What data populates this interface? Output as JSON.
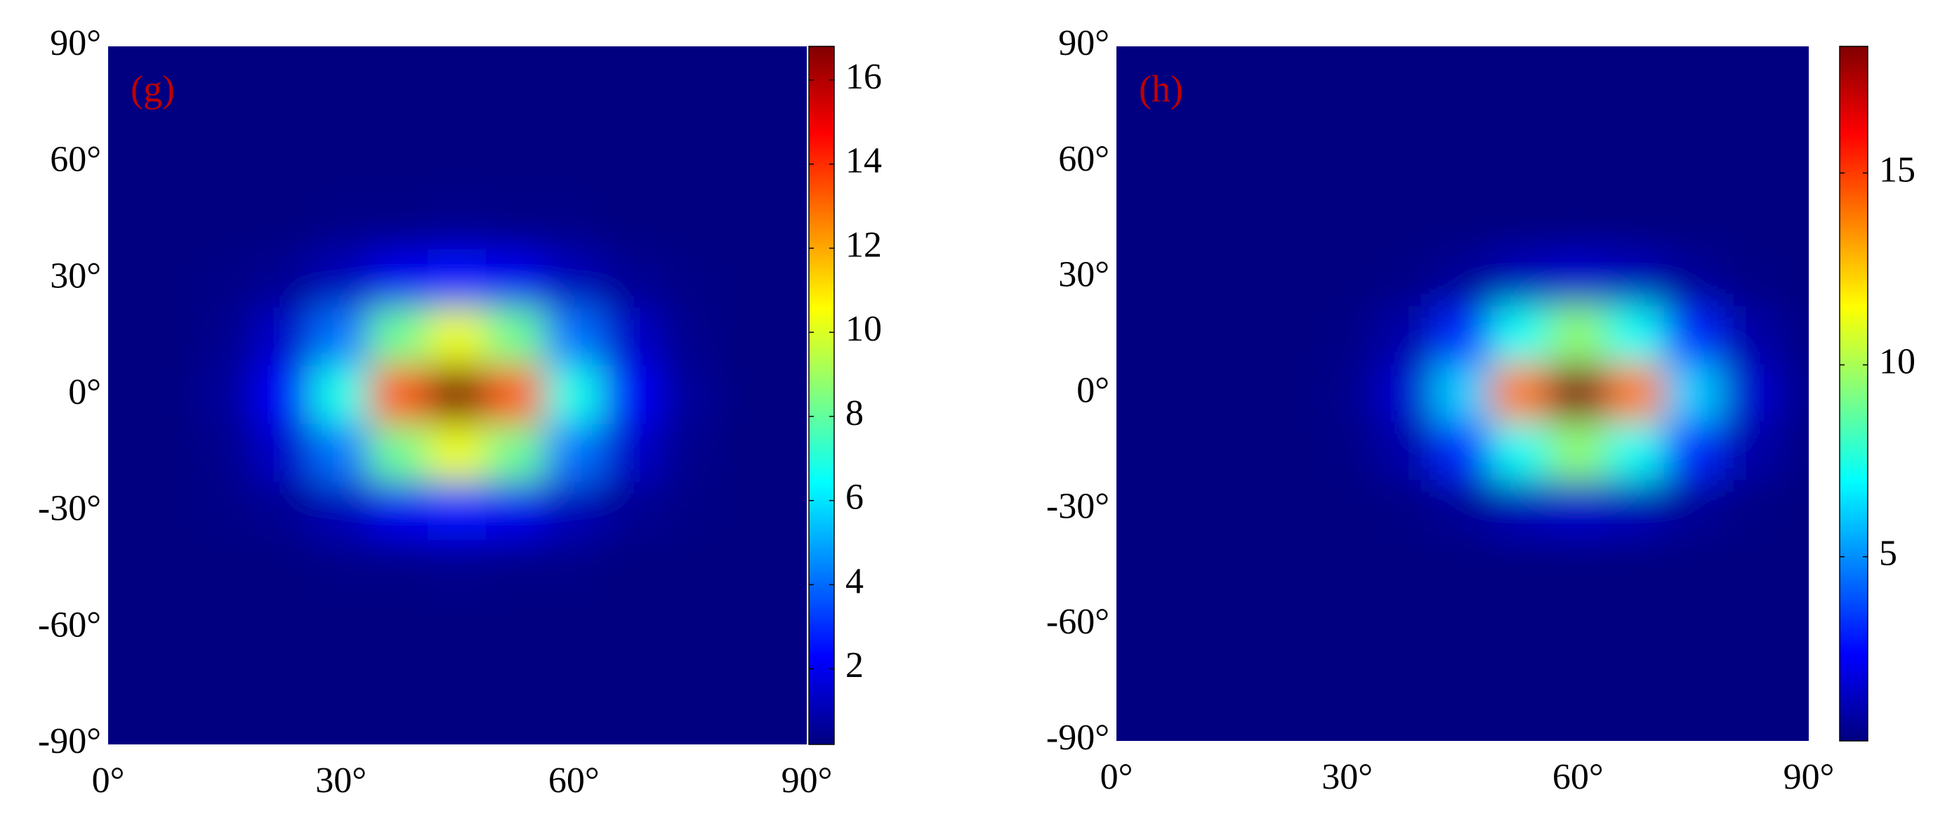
{
  "chart_data": [
    {
      "type": "heatmap",
      "panel_label": "(g)",
      "colormap": "jet",
      "x": [
        0,
        7.5,
        15,
        22.5,
        30,
        37.5,
        45,
        52.5,
        60,
        67.5,
        75,
        82.5,
        90
      ],
      "y": [
        90,
        75,
        60,
        45,
        30,
        15,
        0,
        -15,
        -30,
        -45,
        -60,
        -75,
        -90
      ],
      "z": [
        [
          0.2,
          0.2,
          0.2,
          0.2,
          0.2,
          0.2,
          0.2,
          0.2,
          0.2,
          0.2,
          0.2,
          0.2,
          0.2
        ],
        [
          0.2,
          0.2,
          0.2,
          0.2,
          0.2,
          0.2,
          0.2,
          0.2,
          0.2,
          0.2,
          0.2,
          0.2,
          0.2
        ],
        [
          0.2,
          0.2,
          0.2,
          0.2,
          0.2,
          0.2,
          0.2,
          0.2,
          0.2,
          0.2,
          0.2,
          0.2,
          0.2
        ],
        [
          0.2,
          0.2,
          0.2,
          0.2,
          0.3,
          0.3,
          0.4,
          0.3,
          0.3,
          0.2,
          0.2,
          0.2,
          0.2
        ],
        [
          0.2,
          0.2,
          0.3,
          0.5,
          1.1,
          2.0,
          2.4,
          2.0,
          1.1,
          0.5,
          0.3,
          0.2,
          0.2
        ],
        [
          0.2,
          0.2,
          0.4,
          1.4,
          4.2,
          8.2,
          10.3,
          8.2,
          4.2,
          1.4,
          0.4,
          0.2,
          0.2
        ],
        [
          0.2,
          0.2,
          0.6,
          2.2,
          6.8,
          13.4,
          16.8,
          13.4,
          6.8,
          2.2,
          0.6,
          0.2,
          0.2
        ],
        [
          0.2,
          0.2,
          0.4,
          1.4,
          4.2,
          8.2,
          10.3,
          8.2,
          4.2,
          1.4,
          0.4,
          0.2,
          0.2
        ],
        [
          0.2,
          0.2,
          0.3,
          0.5,
          1.1,
          2.0,
          2.4,
          2.0,
          1.1,
          0.5,
          0.3,
          0.2,
          0.2
        ],
        [
          0.2,
          0.2,
          0.2,
          0.2,
          0.3,
          0.3,
          0.4,
          0.3,
          0.3,
          0.2,
          0.2,
          0.2,
          0.2
        ],
        [
          0.2,
          0.2,
          0.2,
          0.2,
          0.2,
          0.2,
          0.2,
          0.2,
          0.2,
          0.2,
          0.2,
          0.2,
          0.2
        ],
        [
          0.2,
          0.2,
          0.2,
          0.2,
          0.2,
          0.2,
          0.2,
          0.2,
          0.2,
          0.2,
          0.2,
          0.2,
          0.2
        ],
        [
          0.2,
          0.2,
          0.2,
          0.2,
          0.2,
          0.2,
          0.2,
          0.2,
          0.2,
          0.2,
          0.2,
          0.2,
          0.2
        ]
      ],
      "xlim": [
        0,
        90
      ],
      "ylim": [
        -90,
        90
      ],
      "xticks": [
        {
          "value": 0,
          "label": "0°"
        },
        {
          "value": 30,
          "label": "30°"
        },
        {
          "value": 60,
          "label": "60°"
        },
        {
          "value": 90,
          "label": "90°"
        }
      ],
      "yticks": [
        {
          "value": 90,
          "label": "90°"
        },
        {
          "value": 60,
          "label": "60°"
        },
        {
          "value": 30,
          "label": "30°"
        },
        {
          "value": 0,
          "label": "0°"
        },
        {
          "value": -30,
          "label": "-30°"
        },
        {
          "value": -60,
          "label": "-60°"
        },
        {
          "value": -90,
          "label": "-90°"
        }
      ],
      "clim": [
        0.2,
        16.8
      ],
      "cticks": [
        2,
        4,
        6,
        8,
        10,
        12,
        14,
        16
      ]
    },
    {
      "type": "heatmap",
      "panel_label": "(h)",
      "colormap": "jet",
      "x": [
        0,
        7.5,
        15,
        22.5,
        30,
        37.5,
        45,
        52.5,
        60,
        67.5,
        75,
        82.5,
        90
      ],
      "y": [
        90,
        75,
        60,
        45,
        30,
        15,
        0,
        -15,
        -30,
        -45,
        -60,
        -75,
        -90
      ],
      "z": [
        [
          0.2,
          0.2,
          0.2,
          0.2,
          0.2,
          0.2,
          0.2,
          0.2,
          0.2,
          0.2,
          0.2,
          0.2,
          0.2
        ],
        [
          0.2,
          0.2,
          0.2,
          0.2,
          0.2,
          0.2,
          0.2,
          0.2,
          0.2,
          0.2,
          0.2,
          0.2,
          0.2
        ],
        [
          0.2,
          0.2,
          0.2,
          0.2,
          0.2,
          0.2,
          0.2,
          0.2,
          0.2,
          0.2,
          0.2,
          0.2,
          0.2
        ],
        [
          0.2,
          0.2,
          0.2,
          0.2,
          0.2,
          0.2,
          0.2,
          0.2,
          0.2,
          0.2,
          0.2,
          0.2,
          0.2
        ],
        [
          0.2,
          0.2,
          0.2,
          0.2,
          0.2,
          0.3,
          0.6,
          1.2,
          1.5,
          1.2,
          0.6,
          0.3,
          0.2
        ],
        [
          0.2,
          0.2,
          0.2,
          0.2,
          0.3,
          0.9,
          3.2,
          7.2,
          9.5,
          7.2,
          3.2,
          0.9,
          0.3
        ],
        [
          0.2,
          0.2,
          0.2,
          0.2,
          0.4,
          1.6,
          6.1,
          13.9,
          18.3,
          13.9,
          6.1,
          1.6,
          0.4
        ],
        [
          0.2,
          0.2,
          0.2,
          0.2,
          0.3,
          0.9,
          3.2,
          7.2,
          9.5,
          7.2,
          3.2,
          0.9,
          0.3
        ],
        [
          0.2,
          0.2,
          0.2,
          0.2,
          0.2,
          0.3,
          0.6,
          1.2,
          1.5,
          1.2,
          0.6,
          0.3,
          0.2
        ],
        [
          0.2,
          0.2,
          0.2,
          0.2,
          0.2,
          0.2,
          0.2,
          0.2,
          0.2,
          0.2,
          0.2,
          0.2,
          0.2
        ],
        [
          0.2,
          0.2,
          0.2,
          0.2,
          0.2,
          0.2,
          0.2,
          0.2,
          0.2,
          0.2,
          0.2,
          0.2,
          0.2
        ],
        [
          0.2,
          0.2,
          0.2,
          0.2,
          0.2,
          0.2,
          0.2,
          0.2,
          0.2,
          0.2,
          0.2,
          0.2,
          0.2
        ],
        [
          0.2,
          0.2,
          0.2,
          0.2,
          0.2,
          0.2,
          0.2,
          0.2,
          0.2,
          0.2,
          0.2,
          0.2,
          0.2
        ]
      ],
      "xlim": [
        0,
        90
      ],
      "ylim": [
        -90,
        90
      ],
      "xticks": [
        {
          "value": 0,
          "label": "0°"
        },
        {
          "value": 30,
          "label": "30°"
        },
        {
          "value": 60,
          "label": "60°"
        },
        {
          "value": 90,
          "label": "90°"
        }
      ],
      "yticks": [
        {
          "value": 90,
          "label": "90°"
        },
        {
          "value": 60,
          "label": "60°"
        },
        {
          "value": 30,
          "label": "30°"
        },
        {
          "value": 0,
          "label": "0°"
        },
        {
          "value": -30,
          "label": "-30°"
        },
        {
          "value": -60,
          "label": "-60°"
        },
        {
          "value": -90,
          "label": "-90°"
        }
      ],
      "clim": [
        0.2,
        18.3
      ],
      "cticks": [
        5,
        10,
        15
      ]
    }
  ]
}
